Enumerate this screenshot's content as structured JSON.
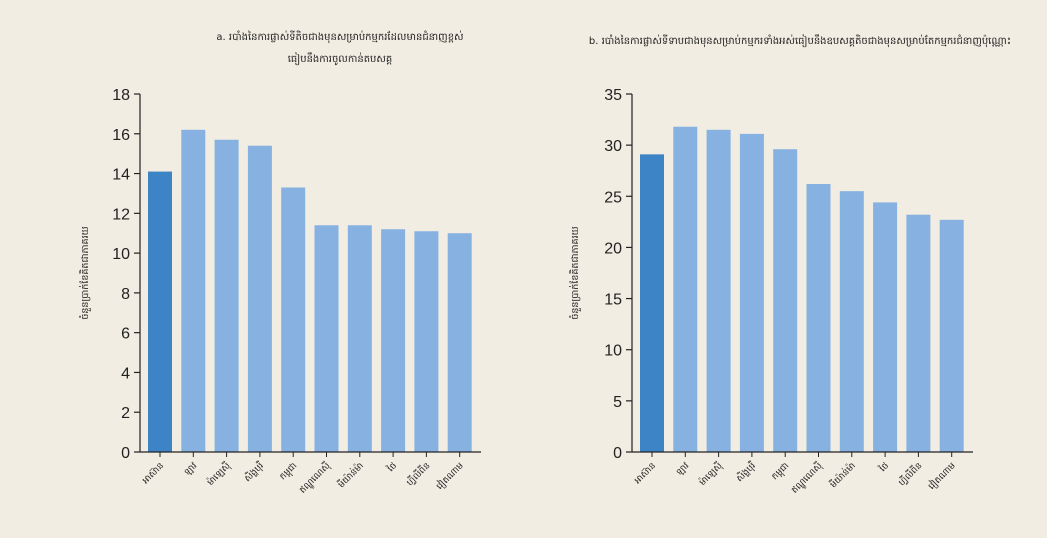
{
  "chart_data": [
    {
      "type": "bar",
      "title_lines": [
        "a. របាំងនៃការផ្លាស់ទីតិចជាងមុនសម្រាប់កម្មករដែលមានជំនាញខ្ពស់",
        "ធៀបនឹងការចូលកាន់តបសគ្គ"
      ],
      "ylabel": "ចំនួនប្រាក់ខែគិតជាភាគរយ",
      "categories": [
        "អាស៊ាន",
        "ឡាវ",
        "ម៉ាឡេស៊ី",
        "សិង្ហបុរី",
        "កម្ពុជា",
        "ឥណ្ឌូណេស៊ី",
        "មីយ៉ាន់ម៉ា",
        "ថៃ",
        "ហ្វីលីពីន",
        "វៀតណាម"
      ],
      "values": [
        14.1,
        16.2,
        15.7,
        15.4,
        13.3,
        11.4,
        11.4,
        11.2,
        11.1,
        11.0
      ],
      "highlight_index": 0,
      "ylim": [
        0,
        18
      ],
      "yticks": [
        0,
        2,
        4,
        6,
        8,
        10,
        12,
        14,
        16,
        18
      ],
      "grid": false,
      "colors": {
        "highlight": "#3d84c6",
        "bar": "#86b1e0"
      }
    },
    {
      "type": "bar",
      "title_lines": [
        "b. របាំងនៃការផ្លាស់ទីទាបជាងមុនសម្រាប់កម្មករទាំងអស់ធៀបនឹងឧបសគ្គតិចជាងមុនសម្រាប់តែកម្មករជំនាញប៉ុណ្ណោះ"
      ],
      "ylabel": "ចំនួនប្រាក់ខែគិតជាភាគរយ",
      "categories": [
        "អាស៊ាន",
        "ឡាវ",
        "ម៉ាឡេស៊ី",
        "សិង្ហបុរី",
        "កម្ពុជា",
        "ឥណ្ឌូណេស៊ី",
        "មីយ៉ាន់ម៉ា",
        "ថៃ",
        "ហ្វីលីពីន",
        "វៀតណាម"
      ],
      "values": [
        29.1,
        31.8,
        31.5,
        31.1,
        29.6,
        26.2,
        25.5,
        24.4,
        23.2,
        22.7
      ],
      "highlight_index": 0,
      "ylim": [
        0,
        35
      ],
      "yticks": [
        0,
        5,
        10,
        15,
        20,
        25,
        30,
        35
      ],
      "grid": false,
      "colors": {
        "highlight": "#3d84c6",
        "bar": "#86b1e0"
      }
    }
  ]
}
